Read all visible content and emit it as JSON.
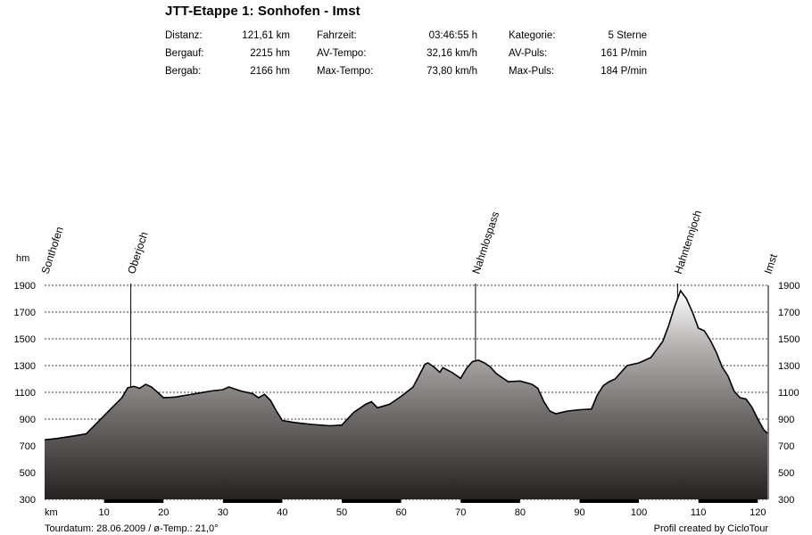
{
  "header": {
    "title": "JTT-Etappe 1: Sonhofen - Imst",
    "stats": [
      {
        "label": "Distanz:",
        "value": "121,61 km"
      },
      {
        "label": "Bergauf:",
        "value": "2215 hm"
      },
      {
        "label": "Bergab:",
        "value": "2166 hm"
      },
      {
        "label": "Fahrzeit:",
        "value": "03:46:55 h"
      },
      {
        "label": "AV-Tempo:",
        "value": "32,16 km/h"
      },
      {
        "label": "Max-Tempo:",
        "value": "73,80 km/h"
      },
      {
        "label": "Kategorie:",
        "value": "5 Sterne"
      },
      {
        "label": "AV-Puls:",
        "value": "161 P/min"
      },
      {
        "label": "Max-Puls:",
        "value": "184 P/min"
      }
    ]
  },
  "footer": {
    "left": "Tourdatum: 28.06.2009  /  ø-Temp.: 21,0°",
    "right": "Profil created by CicloTour"
  },
  "chart_data": {
    "type": "area",
    "ylabel": "hm",
    "xlabel": "km",
    "xlim": [
      0,
      121.61
    ],
    "ylim": [
      300,
      1900
    ],
    "grid": true,
    "yticks": [
      300,
      500,
      700,
      900,
      1100,
      1300,
      1500,
      1700,
      1900
    ],
    "xticks": [
      10,
      20,
      30,
      40,
      50,
      60,
      70,
      80,
      90,
      100,
      110,
      120
    ],
    "x": [
      0,
      2,
      5,
      7,
      9,
      11,
      13,
      14,
      15,
      16,
      17,
      18,
      19,
      20,
      22,
      24,
      26,
      28,
      30,
      31,
      33,
      35,
      36,
      37,
      38,
      39,
      40,
      42,
      45,
      48,
      50,
      52,
      54,
      55,
      56,
      58,
      60,
      62,
      64,
      64.5,
      65.5,
      66.5,
      67,
      68.5,
      70,
      71,
      72,
      73,
      74,
      75,
      76,
      78,
      80,
      82,
      83,
      84,
      85,
      86,
      88,
      90,
      92,
      93,
      94,
      95,
      96,
      98,
      100,
      101,
      102,
      104,
      105,
      106,
      107,
      108,
      109,
      110,
      111,
      112,
      113,
      114,
      115,
      116,
      117,
      118,
      119,
      120,
      121,
      121.61
    ],
    "y": [
      745,
      755,
      775,
      790,
      880,
      970,
      1060,
      1135,
      1145,
      1130,
      1160,
      1140,
      1100,
      1060,
      1065,
      1080,
      1095,
      1110,
      1120,
      1140,
      1110,
      1090,
      1060,
      1085,
      1040,
      960,
      890,
      875,
      860,
      850,
      855,
      950,
      1010,
      1030,
      985,
      1010,
      1070,
      1140,
      1310,
      1320,
      1290,
      1250,
      1285,
      1250,
      1205,
      1280,
      1330,
      1340,
      1320,
      1290,
      1240,
      1180,
      1185,
      1160,
      1130,
      1030,
      960,
      940,
      960,
      970,
      975,
      1080,
      1150,
      1180,
      1200,
      1300,
      1320,
      1340,
      1360,
      1480,
      1600,
      1740,
      1860,
      1800,
      1700,
      1580,
      1560,
      1490,
      1400,
      1290,
      1220,
      1110,
      1060,
      1050,
      990,
      900,
      820,
      795
    ],
    "waypoints": [
      {
        "name": "Sonthofen",
        "km": 0,
        "marker": false
      },
      {
        "name": "Oberjoch",
        "km": 14.5,
        "marker": true
      },
      {
        "name": "Nahmlospass",
        "km": 72.5,
        "marker": true
      },
      {
        "name": "Hahntennjoch",
        "km": 106.5,
        "marker": true
      },
      {
        "name": "Imst",
        "km": 121.61,
        "marker": false
      }
    ]
  }
}
